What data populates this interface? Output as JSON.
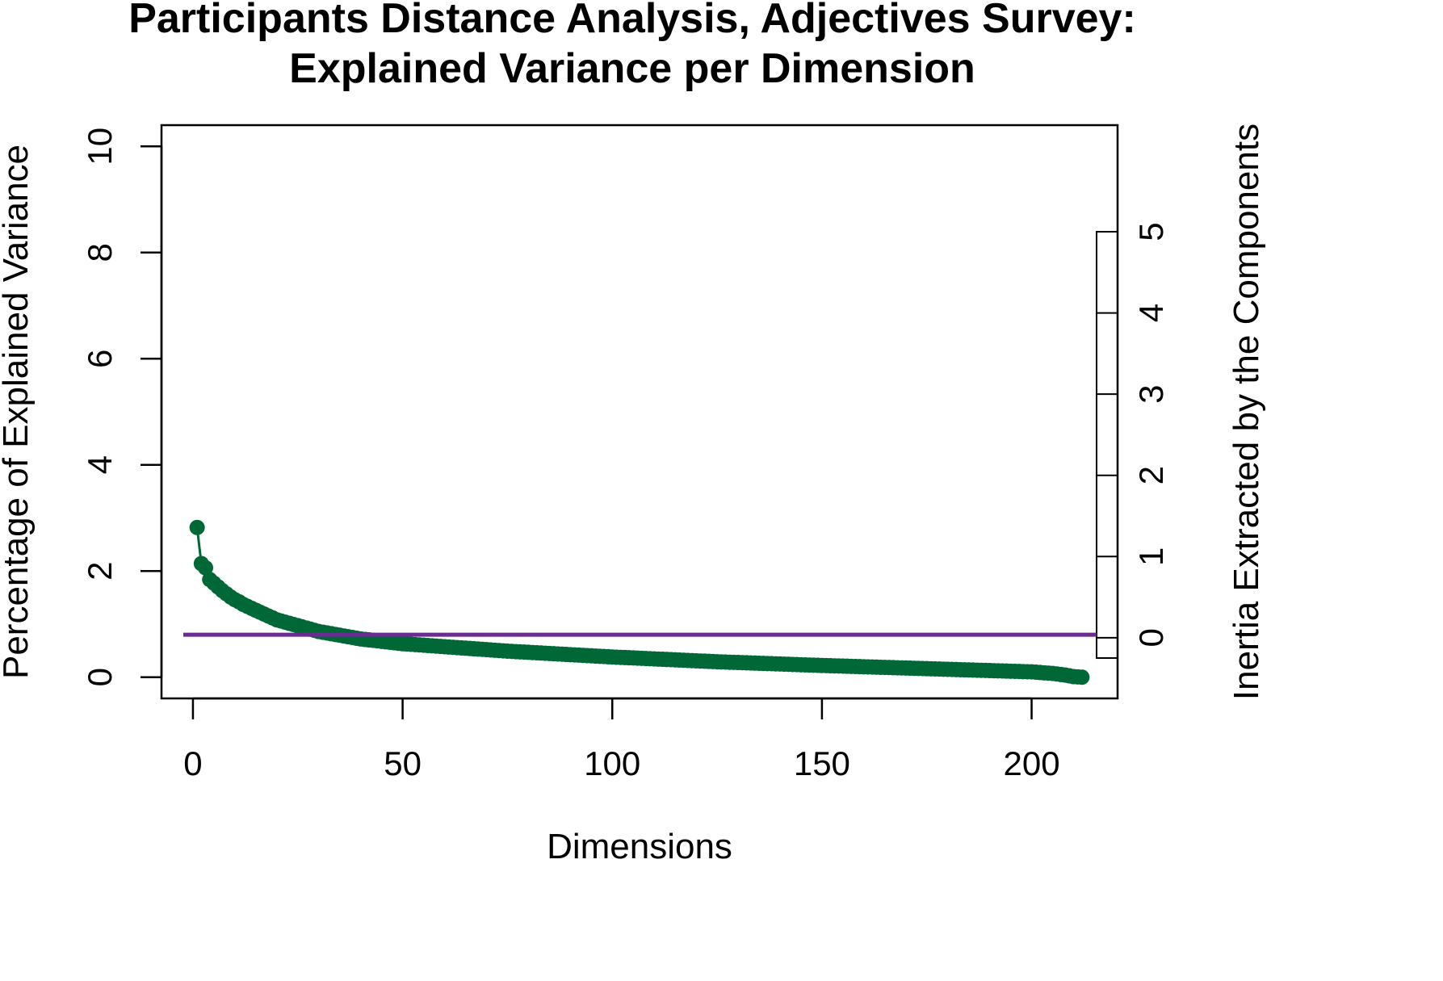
{
  "chart_data": {
    "type": "scatter",
    "title_lines": [
      "Participants Distance Analysis, Adjectives Survey:",
      "Explained Variance per Dimension"
    ],
    "xlabel": "Dimensions",
    "ylabel": "Percentage of Explained Variance",
    "y2label": "Inertia Extracted by the Components",
    "xlim": [
      -7.5,
      220.5
    ],
    "ylim": [
      -0.4,
      10.4
    ],
    "y2lim": [
      -0.25,
      5
    ],
    "x_ticks": [
      0,
      50,
      100,
      150,
      200
    ],
    "x_tick_labels": [
      "0",
      "50",
      "100",
      "150",
      "200"
    ],
    "y_ticks": [
      0,
      2,
      4,
      6,
      8,
      10
    ],
    "y_tick_labels": [
      "0",
      "2",
      "4",
      "6",
      "8",
      "10"
    ],
    "y2_ticks": [
      0,
      1,
      2,
      3,
      4,
      5
    ],
    "y2_tick_labels": [
      "0",
      "1",
      "2",
      "3",
      "4",
      "5"
    ],
    "n_dimensions": 212,
    "series": [
      {
        "name": "Percentage of Explained Variance",
        "color": "#006837",
        "head_values": [
          2.82,
          2.14,
          2.06,
          1.84,
          1.77,
          1.7,
          1.63,
          1.57,
          1.51,
          1.46,
          1.42
        ],
        "anchors": [
          [
            12,
            1.37
          ],
          [
            15,
            1.26
          ],
          [
            20,
            1.08
          ],
          [
            25,
            0.97
          ],
          [
            30,
            0.86
          ],
          [
            40,
            0.72
          ],
          [
            50,
            0.63
          ],
          [
            75,
            0.49
          ],
          [
            100,
            0.38
          ],
          [
            125,
            0.29
          ],
          [
            150,
            0.22
          ],
          [
            175,
            0.16
          ],
          [
            200,
            0.1
          ],
          [
            205,
            0.07
          ],
          [
            208,
            0.04
          ],
          [
            210,
            0.01
          ],
          [
            212,
            0.0
          ]
        ]
      }
    ],
    "reference_line": {
      "y": 0.8,
      "color": "#6a2c91"
    }
  }
}
